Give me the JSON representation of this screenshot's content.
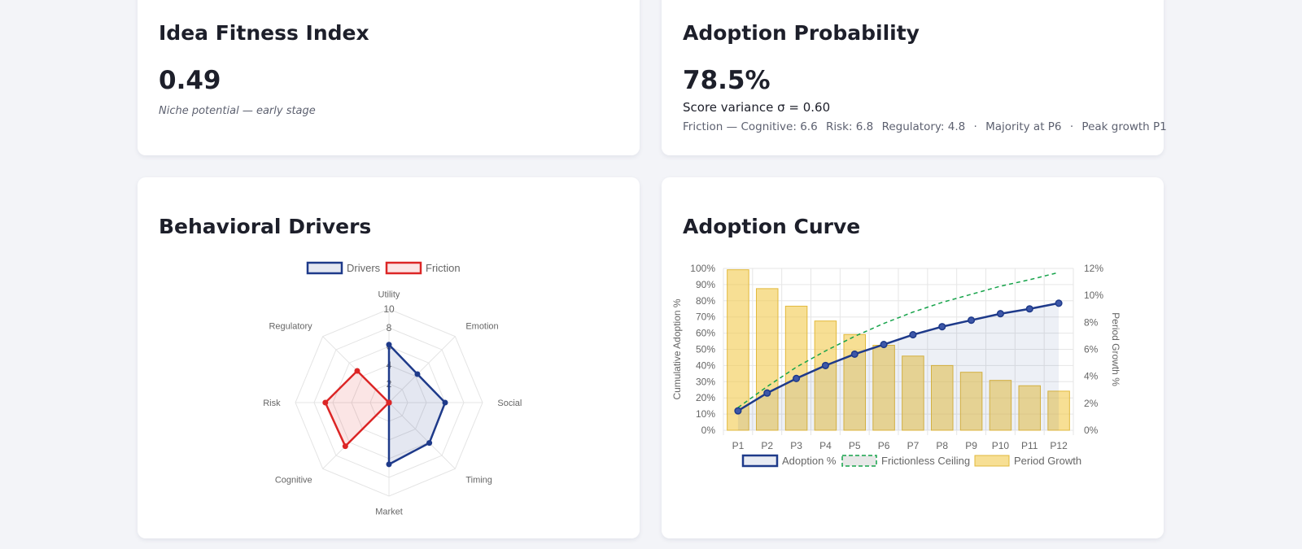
{
  "fitness": {
    "title": "Idea Fitness Index",
    "value": "0.49",
    "subtitle": "Niche potential — early stage"
  },
  "adoption": {
    "title": "Adoption Probability",
    "value": "78.5%",
    "variance": "Score variance σ = 0.60",
    "friction_label": "Friction — Cognitive: 6.6",
    "risk": "Risk: 6.8",
    "regulatory": "Regulatory: 4.8",
    "sep1": "·",
    "majority": "Majority at P6",
    "sep2": "·",
    "peak": "Peak growth P1"
  },
  "drivers": {
    "title": "Behavioral Drivers",
    "chart_data": {
      "type": "radar",
      "axes": [
        "Utility",
        "Emotion",
        "Social",
        "Timing",
        "Market",
        "Cognitive",
        "Risk",
        "Regulatory"
      ],
      "ticks": [
        "2",
        "4",
        "6",
        "8",
        "10"
      ],
      "range": [
        0,
        10
      ],
      "series": [
        {
          "name": "Drivers",
          "values": [
            6.2,
            4.3,
            6.0,
            6.1,
            6.6,
            0,
            0,
            0
          ],
          "color": "#1e3a8a"
        },
        {
          "name": "Friction",
          "values": [
            0,
            0,
            0,
            0,
            0,
            6.6,
            6.8,
            4.8
          ],
          "color": "#dc2626"
        }
      ]
    }
  },
  "curve": {
    "title": "Adoption Curve",
    "chart_data": {
      "type": "bar+line",
      "categories": [
        "P1",
        "P2",
        "P3",
        "P4",
        "P5",
        "P6",
        "P7",
        "P8",
        "P9",
        "P10",
        "P11",
        "P12"
      ],
      "y_left_label": "Cumulative Adoption %",
      "y_right_label": "Period Growth %",
      "y_left_ticks": [
        "0%",
        "10%",
        "20%",
        "30%",
        "40%",
        "50%",
        "60%",
        "70%",
        "80%",
        "90%",
        "100%"
      ],
      "y_right_ticks": [
        "0%",
        "2%",
        "4%",
        "6%",
        "8%",
        "10%",
        "12%"
      ],
      "y_left_range": [
        0,
        100
      ],
      "y_right_range": [
        0,
        12
      ],
      "series": [
        {
          "name": "Adoption %",
          "type": "line",
          "axis": "left",
          "color": "#1e3a8a",
          "values": [
            12,
            23,
            32,
            40,
            47,
            53,
            59,
            64,
            68,
            72,
            75,
            78.5
          ]
        },
        {
          "name": "Frictionless Ceiling",
          "type": "line-dashed",
          "axis": "left",
          "color": "#16a34a",
          "values": [
            14,
            27,
            39,
            49,
            58,
            66,
            73,
            79,
            84,
            89,
            93,
            97.5
          ]
        },
        {
          "name": "Period Growth",
          "type": "bar",
          "axis": "right",
          "color": "#f4d77a",
          "values": [
            11.9,
            10.5,
            9.2,
            8.1,
            7.1,
            6.3,
            5.5,
            4.8,
            4.3,
            3.7,
            3.3,
            2.9
          ]
        }
      ]
    }
  }
}
